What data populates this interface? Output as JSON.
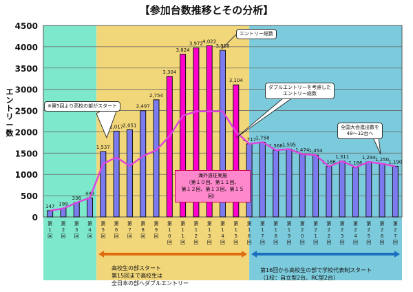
{
  "chart_data": {
    "type": "bar",
    "title": "【参加台数推移とその分析】",
    "ylabel": "エントリー数",
    "ylim": [
      0,
      4500
    ],
    "yticks": [
      0,
      500,
      1000,
      1500,
      2000,
      2500,
      3000,
      3500,
      4000,
      4500
    ],
    "grid": true,
    "categories": [
      "第1回",
      "第2回",
      "第3回",
      "第4回",
      "第5回",
      "第6回",
      "第7回",
      "第8回",
      "第9回",
      "第10回",
      "第11回",
      "第12回",
      "第13回",
      "第14回",
      "第15回",
      "第16回",
      "第17回",
      "第18回",
      "第19回",
      "第20回",
      "第21回",
      "第22回",
      "第23回",
      "第24回",
      "第25回",
      "第26回",
      "第27回"
    ],
    "series": [
      {
        "name": "エントリー総数",
        "type": "bar",
        "values": [
          147,
          199,
          336,
          448,
          1537,
          2017,
          2051,
          2497,
          2754,
          3304,
          3824,
          3972,
          4022,
          3916,
          3104,
          1717,
          1758,
          1568,
          1595,
          1474,
          1454,
          1186,
          1311,
          1166,
          1294,
          1250,
          1190
        ],
        "data_labels": [
          "147",
          "199",
          "336",
          "448",
          "1,537",
          "2,017",
          "2,051",
          "2,497",
          "2,754",
          "3,304",
          "3,824",
          "3,972",
          "4,022",
          "3,916",
          "3,104",
          "1,717",
          "1,758",
          "1,568",
          "1,595",
          "1,474",
          "1,454",
          "1,186",
          "1,311",
          "1,166",
          "1,294",
          "1,250",
          "1,190"
        ],
        "overseas_editions": [
          "第10回",
          "第11回",
          "第12回",
          "第13回",
          "第15回"
        ]
      },
      {
        "name": "ダブルエントリーを考慮したエントリー総数",
        "type": "line",
        "values": [
          147,
          199,
          336,
          448,
          1250,
          1400,
          1200,
          1430,
          1570,
          1900,
          2380,
          2480,
          2480,
          2480,
          2000,
          1717,
          1758,
          1568,
          1595,
          1474,
          1454,
          1186,
          1311,
          1166,
          1294,
          1250,
          1190
        ]
      }
    ],
    "colors": {
      "bar": "#7b7bef",
      "bar_overseas": "#ff00cc",
      "line": "#dd44dd",
      "zone1": "#7ee8cc",
      "zone2": "#f2d77a",
      "zone3": "#7ccbdc"
    }
  },
  "annotations": {
    "total_label": "エントリー総数",
    "double_label": "ダブルエントリーを考慮した\nエントリー総数",
    "hs_start": "※第5回より高校の部がスタート",
    "national": "全国大会進出数を\n48～32台へ",
    "overseas": "海外遠征実施\n（第１０回、第１１回、\n第１２回、第１３回、第１５\n回）",
    "zone2_note": "高校生の部スタート\n第15回まで高校生は\n全日本の部へダブルエントリー",
    "zone3_note": "第16回から高校生の部で学校代表制スタート\n（1校：自立型2台、RC型2台）"
  }
}
